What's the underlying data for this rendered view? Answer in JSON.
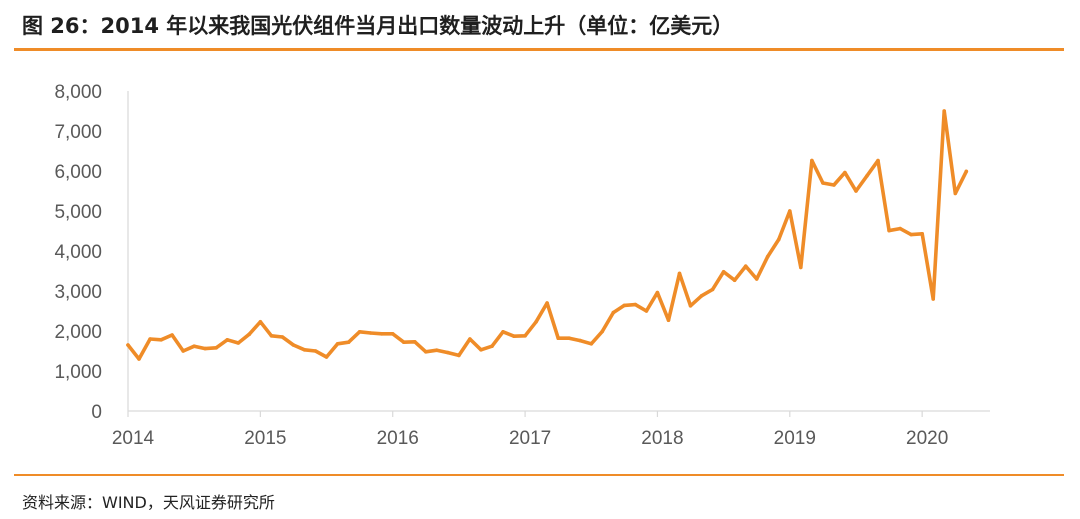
{
  "title": "图 26：2014 年以来我国光伏组件当月出口数量波动上升（单位：亿美元）",
  "source": "资料来源：WIND，天风证券研究所",
  "colors": {
    "line": "#ef8c28",
    "rule": "#ef8c28",
    "axis": "#d9d9d9",
    "tick_text": "#595959"
  },
  "chart_data": {
    "type": "line",
    "xlabel": "",
    "ylabel": "",
    "ylim": [
      0,
      8000
    ],
    "yticks": [
      "0",
      "1,000",
      "2,000",
      "3,000",
      "4,000",
      "5,000",
      "6,000",
      "7,000",
      "8,000"
    ],
    "xticks": [
      "2014",
      "2015",
      "2016",
      "2017",
      "2018",
      "2019",
      "2020"
    ],
    "grid": false,
    "legend": "none",
    "series": [
      {
        "x": [
          "2014-01",
          "2014-02",
          "2014-03",
          "2014-04",
          "2014-05",
          "2014-06",
          "2014-07",
          "2014-08",
          "2014-09",
          "2014-10",
          "2014-11",
          "2014-12",
          "2015-01",
          "2015-02",
          "2015-03",
          "2015-04",
          "2015-05",
          "2015-06",
          "2015-07",
          "2015-08",
          "2015-09",
          "2015-10",
          "2015-11",
          "2015-12",
          "2016-01",
          "2016-02",
          "2016-03",
          "2016-04",
          "2016-05",
          "2016-06",
          "2016-07",
          "2016-08",
          "2016-09",
          "2016-10",
          "2016-11",
          "2016-12",
          "2017-01",
          "2017-02",
          "2017-03",
          "2017-04",
          "2017-05",
          "2017-06",
          "2017-07",
          "2017-08",
          "2017-09",
          "2017-10",
          "2017-11",
          "2017-12",
          "2018-01",
          "2018-02",
          "2018-03",
          "2018-04",
          "2018-05",
          "2018-06",
          "2018-07",
          "2018-08",
          "2018-09",
          "2018-10",
          "2018-11",
          "2018-12",
          "2019-01",
          "2019-02",
          "2019-03",
          "2019-04",
          "2019-05",
          "2019-06",
          "2019-07",
          "2019-08",
          "2019-09",
          "2019-10",
          "2019-11",
          "2019-12",
          "2020-01",
          "2020-02",
          "2020-03",
          "2020-04",
          "2020-05"
        ],
        "values": [
          1650,
          1300,
          1800,
          1780,
          1900,
          1500,
          1620,
          1560,
          1580,
          1780,
          1700,
          1920,
          2230,
          1880,
          1850,
          1650,
          1530,
          1500,
          1350,
          1680,
          1720,
          1980,
          1950,
          1930,
          1930,
          1720,
          1730,
          1480,
          1520,
          1460,
          1390,
          1800,
          1530,
          1620,
          1980,
          1870,
          1880,
          2230,
          2700,
          1820,
          1820,
          1760,
          1680,
          1990,
          2460,
          2640,
          2660,
          2500,
          2960,
          2270,
          3440,
          2630,
          2880,
          3040,
          3480,
          3270,
          3620,
          3300,
          3860,
          4290,
          5000,
          3590,
          6260,
          5700,
          5650,
          5960,
          5500,
          5880,
          6260,
          4510,
          4560,
          4410,
          4430,
          2800,
          7500,
          5440,
          5990
        ]
      }
    ]
  }
}
